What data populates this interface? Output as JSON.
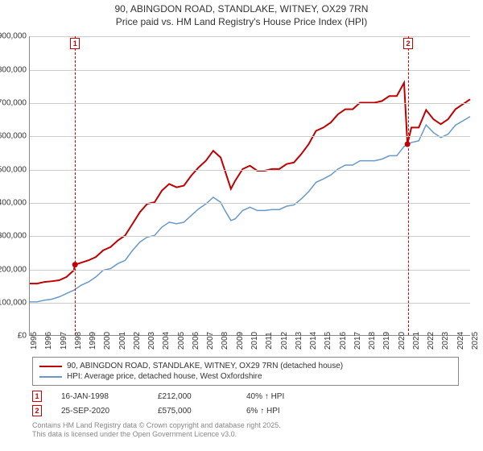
{
  "title_line1": "90, ABINGDON ROAD, STANDLAKE, WITNEY, OX29 7RN",
  "title_line2": "Price paid vs. HM Land Registry's House Price Index (HPI)",
  "chart": {
    "type": "line",
    "background_color": "#ffffff",
    "grid_color": "#cccccc",
    "ylim": [
      0,
      900000
    ],
    "ytick_step": 100000,
    "yticks": [
      "£0",
      "£100,000",
      "£200,000",
      "£300,000",
      "£400,000",
      "£500,000",
      "£600,000",
      "£700,000",
      "£800,000",
      "£900,000"
    ],
    "x_years": [
      1995,
      1996,
      1997,
      1998,
      1999,
      2000,
      2001,
      2002,
      2003,
      2004,
      2005,
      2006,
      2007,
      2008,
      2009,
      2010,
      2011,
      2012,
      2013,
      2014,
      2015,
      2016,
      2017,
      2018,
      2019,
      2020,
      2021,
      2022,
      2023,
      2024,
      2025
    ],
    "series": [
      {
        "name": "red",
        "color": "#c00000",
        "width": 2,
        "points": [
          [
            1995,
            155000
          ],
          [
            1995.5,
            155000
          ],
          [
            1996,
            160000
          ],
          [
            1996.5,
            162000
          ],
          [
            1997,
            165000
          ],
          [
            1997.5,
            175000
          ],
          [
            1998,
            195000
          ],
          [
            1998.083,
            212000
          ],
          [
            1998.5,
            218000
          ],
          [
            1999,
            225000
          ],
          [
            1999.5,
            235000
          ],
          [
            2000,
            255000
          ],
          [
            2000.5,
            265000
          ],
          [
            2001,
            285000
          ],
          [
            2001.5,
            300000
          ],
          [
            2002,
            335000
          ],
          [
            2002.5,
            370000
          ],
          [
            2003,
            395000
          ],
          [
            2003.5,
            400000
          ],
          [
            2004,
            435000
          ],
          [
            2004.5,
            455000
          ],
          [
            2005,
            445000
          ],
          [
            2005.5,
            450000
          ],
          [
            2006,
            480000
          ],
          [
            2006.5,
            505000
          ],
          [
            2007,
            525000
          ],
          [
            2007.5,
            555000
          ],
          [
            2008,
            535000
          ],
          [
            2008.3,
            495000
          ],
          [
            2008.7,
            440000
          ],
          [
            2009,
            465000
          ],
          [
            2009.5,
            500000
          ],
          [
            2010,
            510000
          ],
          [
            2010.5,
            495000
          ],
          [
            2011,
            495000
          ],
          [
            2011.5,
            500000
          ],
          [
            2012,
            500000
          ],
          [
            2012.5,
            515000
          ],
          [
            2013,
            520000
          ],
          [
            2013.5,
            545000
          ],
          [
            2014,
            575000
          ],
          [
            2014.5,
            615000
          ],
          [
            2015,
            625000
          ],
          [
            2015.5,
            640000
          ],
          [
            2016,
            665000
          ],
          [
            2016.5,
            680000
          ],
          [
            2017,
            680000
          ],
          [
            2017.5,
            700000
          ],
          [
            2018,
            700000
          ],
          [
            2018.5,
            700000
          ],
          [
            2019,
            705000
          ],
          [
            2019.5,
            720000
          ],
          [
            2020,
            720000
          ],
          [
            2020.5,
            760000
          ],
          [
            2020.73,
            575000
          ],
          [
            2021,
            625000
          ],
          [
            2021.5,
            625000
          ],
          [
            2022,
            678000
          ],
          [
            2022.5,
            650000
          ],
          [
            2023,
            635000
          ],
          [
            2023.5,
            650000
          ],
          [
            2024,
            680000
          ],
          [
            2024.5,
            695000
          ],
          [
            2025,
            710000
          ]
        ]
      },
      {
        "name": "blue",
        "color": "#6699cc",
        "width": 1.5,
        "points": [
          [
            1995,
            100000
          ],
          [
            1995.5,
            100000
          ],
          [
            1996,
            105000
          ],
          [
            1996.5,
            108000
          ],
          [
            1997,
            115000
          ],
          [
            1997.5,
            125000
          ],
          [
            1998,
            135000
          ],
          [
            1998.5,
            150000
          ],
          [
            1999,
            160000
          ],
          [
            1999.5,
            175000
          ],
          [
            2000,
            195000
          ],
          [
            2000.5,
            200000
          ],
          [
            2001,
            215000
          ],
          [
            2001.5,
            225000
          ],
          [
            2002,
            255000
          ],
          [
            2002.5,
            280000
          ],
          [
            2003,
            295000
          ],
          [
            2003.5,
            300000
          ],
          [
            2004,
            325000
          ],
          [
            2004.5,
            340000
          ],
          [
            2005,
            335000
          ],
          [
            2005.5,
            340000
          ],
          [
            2006,
            360000
          ],
          [
            2006.5,
            380000
          ],
          [
            2007,
            395000
          ],
          [
            2007.5,
            415000
          ],
          [
            2008,
            400000
          ],
          [
            2008.3,
            375000
          ],
          [
            2008.7,
            345000
          ],
          [
            2009,
            350000
          ],
          [
            2009.5,
            375000
          ],
          [
            2010,
            385000
          ],
          [
            2010.5,
            375000
          ],
          [
            2011,
            375000
          ],
          [
            2011.5,
            378000
          ],
          [
            2012,
            378000
          ],
          [
            2012.5,
            388000
          ],
          [
            2013,
            392000
          ],
          [
            2013.5,
            410000
          ],
          [
            2014,
            432000
          ],
          [
            2014.5,
            460000
          ],
          [
            2015,
            470000
          ],
          [
            2015.5,
            482000
          ],
          [
            2016,
            500000
          ],
          [
            2016.5,
            512000
          ],
          [
            2017,
            512000
          ],
          [
            2017.5,
            525000
          ],
          [
            2018,
            525000
          ],
          [
            2018.5,
            525000
          ],
          [
            2019,
            530000
          ],
          [
            2019.5,
            540000
          ],
          [
            2020,
            540000
          ],
          [
            2020.5,
            568000
          ],
          [
            2021,
            580000
          ],
          [
            2021.5,
            585000
          ],
          [
            2022,
            633000
          ],
          [
            2022.5,
            610000
          ],
          [
            2023,
            595000
          ],
          [
            2023.5,
            605000
          ],
          [
            2024,
            632000
          ],
          [
            2024.5,
            645000
          ],
          [
            2025,
            658000
          ]
        ]
      }
    ],
    "sale_markers": [
      {
        "n": "1",
        "x": 1998.083,
        "y": 212000
      },
      {
        "n": "2",
        "x": 2020.73,
        "y": 575000
      }
    ]
  },
  "legend": {
    "items": [
      {
        "color": "#c00000",
        "label": "90, ABINGDON ROAD, STANDLAKE, WITNEY, OX29 7RN (detached house)"
      },
      {
        "color": "#6699cc",
        "label": "HPI: Average price, detached house, West Oxfordshire"
      }
    ]
  },
  "sales": [
    {
      "n": "1",
      "date": "16-JAN-1998",
      "price": "£212,000",
      "delta": "40% ↑ HPI"
    },
    {
      "n": "2",
      "date": "25-SEP-2020",
      "price": "£575,000",
      "delta": "6% ↑ HPI"
    }
  ],
  "footer_line1": "Contains HM Land Registry data © Crown copyright and database right 2025.",
  "footer_line2": "This data is licensed under the Open Government Licence v3.0."
}
